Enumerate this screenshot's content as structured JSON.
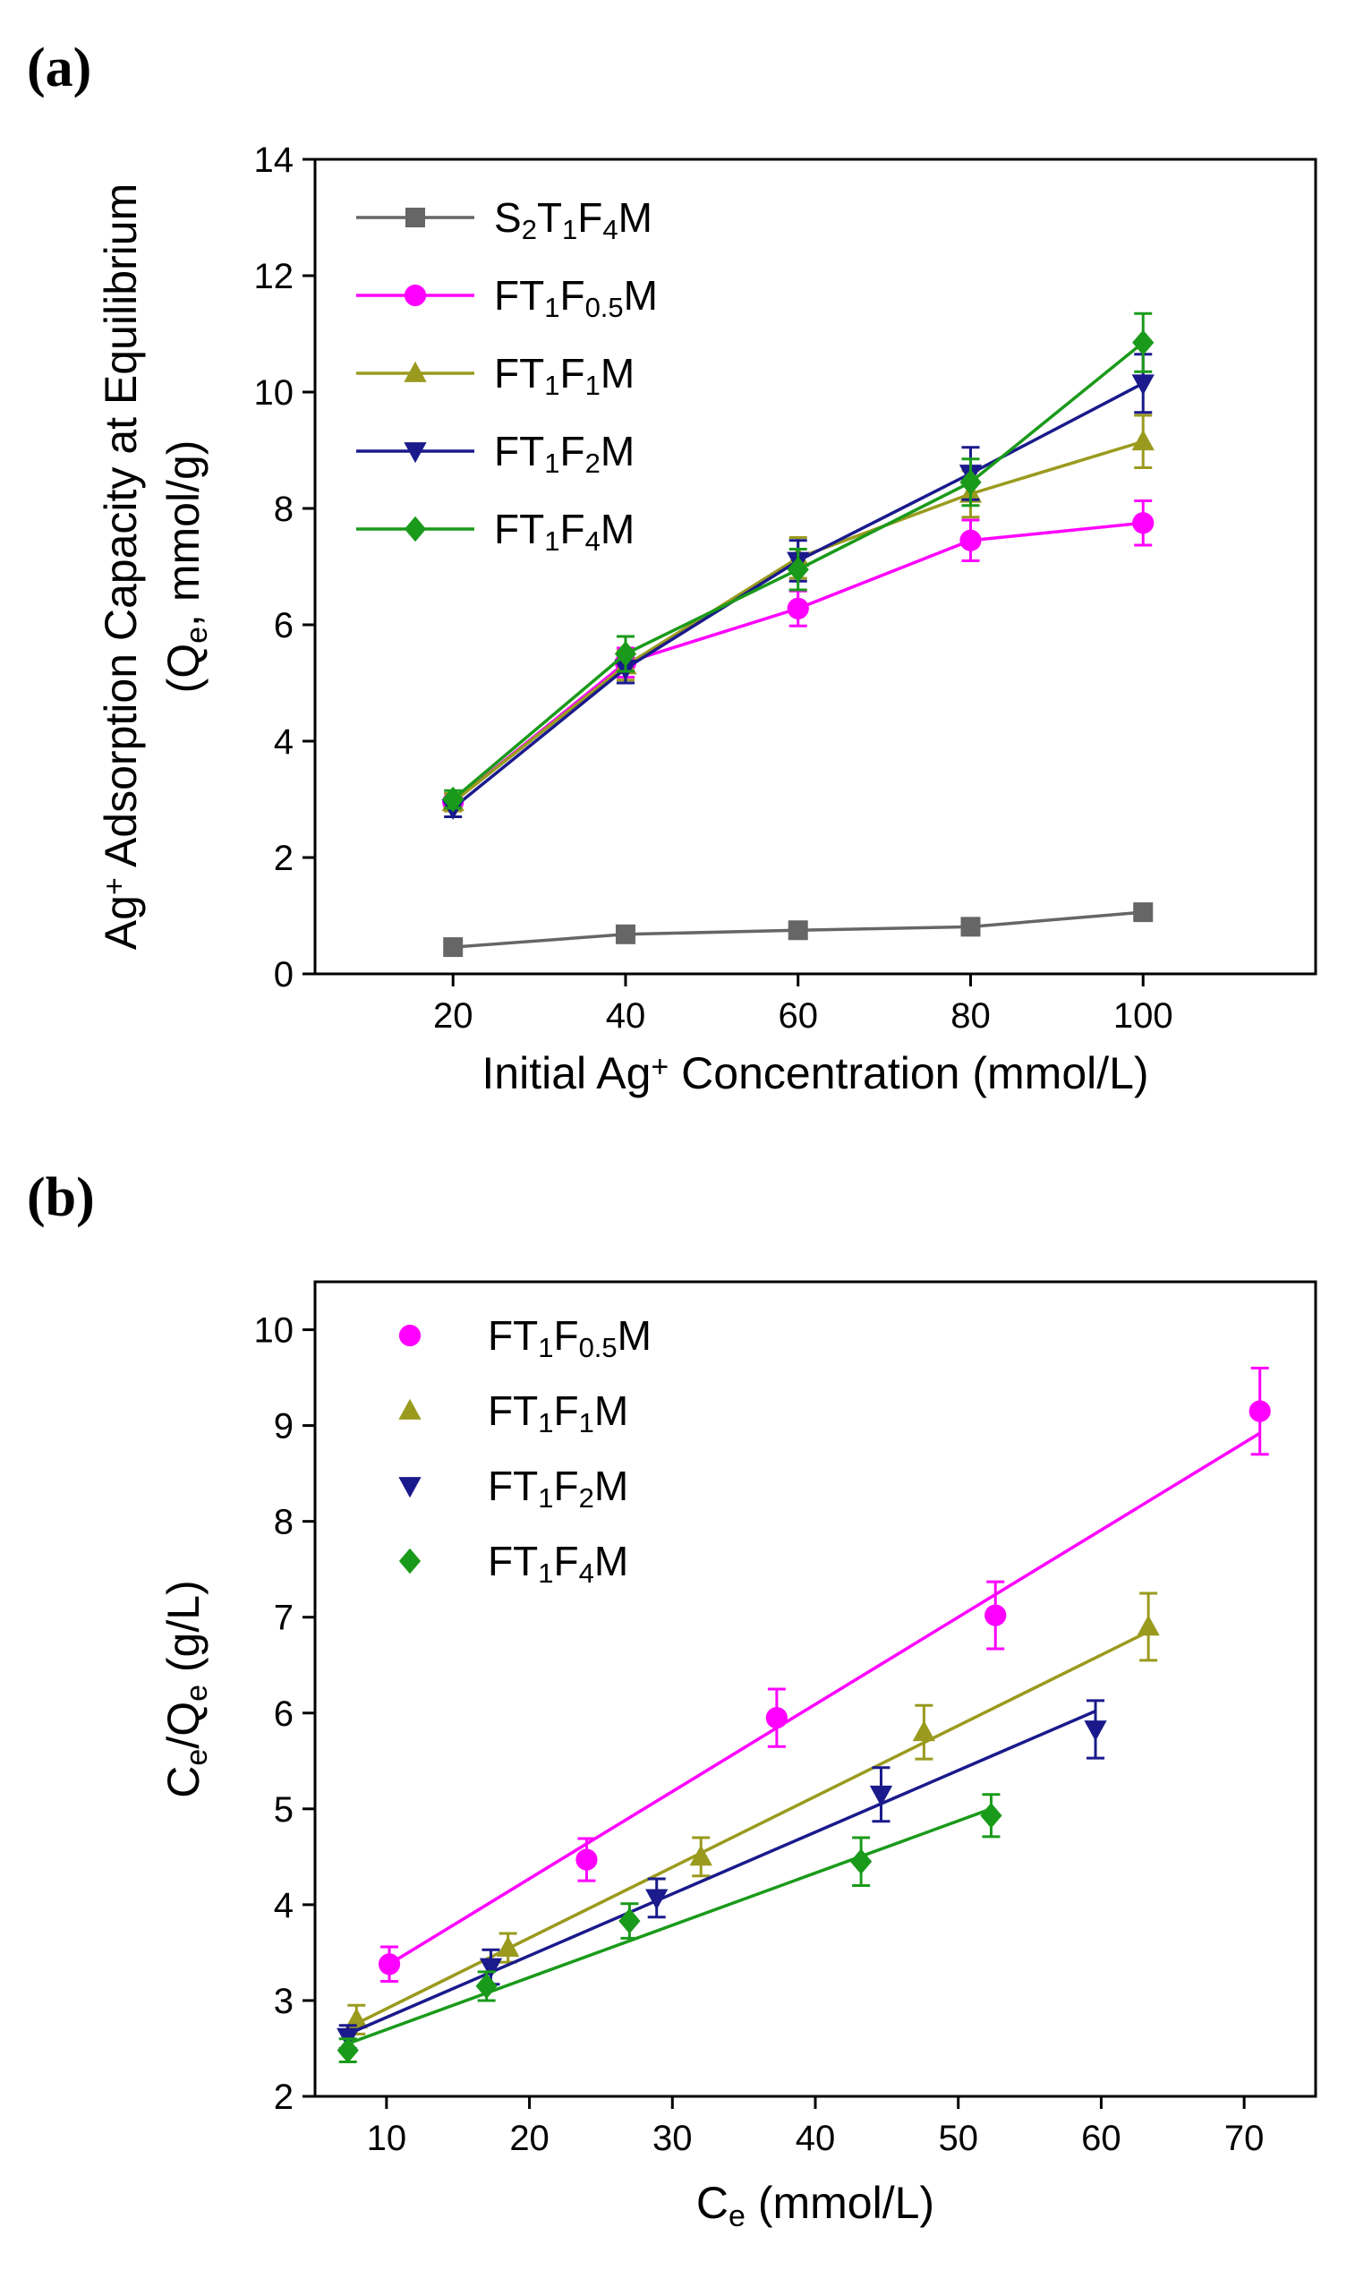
{
  "chart_data": [
    {
      "panel": "(a)",
      "type": "line",
      "xlabel": {
        "pre": "Initial Ag",
        "sup": "+",
        "post": " Concentration (mmol/L)"
      },
      "ylabel_line1": {
        "pre": "Ag",
        "sup": "+",
        "post": " Adsorption Capacity at Equilibrium"
      },
      "ylabel_line2": {
        "pre": "(Q",
        "sub": "e",
        "post": ", mmol/g)"
      },
      "xticks": [
        20,
        40,
        60,
        80,
        100
      ],
      "yticks": [
        0,
        2,
        4,
        6,
        8,
        10,
        12,
        14
      ],
      "xlim": [
        4,
        120
      ],
      "ylim": [
        0,
        14
      ],
      "legend_position": "top-left",
      "series": [
        {
          "key": "s2t1f4m",
          "name": "S2T1F4M",
          "parts": [
            [
              "S",
              ""
            ],
            [
              "2",
              "sub"
            ],
            [
              "T",
              ""
            ],
            [
              "1",
              "sub"
            ],
            [
              "F",
              ""
            ],
            [
              "4",
              "sub"
            ],
            [
              "M",
              ""
            ]
          ],
          "color": "#666666",
          "marker": "square",
          "x": [
            20,
            40,
            60,
            80,
            100
          ],
          "y": [
            0.46,
            0.68,
            0.75,
            0.81,
            1.06
          ],
          "err": [
            0.05,
            0.05,
            0.05,
            0.05,
            0.07
          ]
        },
        {
          "key": "ft1f05m",
          "name": "FT1F0.5M",
          "parts": [
            [
              "FT",
              ""
            ],
            [
              "1",
              "sub"
            ],
            [
              "F",
              ""
            ],
            [
              "0.5",
              "sub"
            ],
            [
              "M",
              ""
            ]
          ],
          "color": "#ff00ff",
          "marker": "circle",
          "x": [
            20,
            40,
            60,
            80,
            100
          ],
          "y": [
            2.95,
            5.35,
            6.28,
            7.45,
            7.75
          ],
          "err": [
            0.15,
            0.25,
            0.3,
            0.35,
            0.38
          ]
        },
        {
          "key": "ft1f1m",
          "name": "FT1F1M",
          "parts": [
            [
              "FT",
              ""
            ],
            [
              "1",
              "sub"
            ],
            [
              "F",
              ""
            ],
            [
              "1",
              "sub"
            ],
            [
              "M",
              ""
            ]
          ],
          "color": "#9a9a1e",
          "marker": "triangle-up",
          "x": [
            20,
            40,
            60,
            80,
            100
          ],
          "y": [
            2.95,
            5.3,
            7.15,
            8.25,
            9.15
          ],
          "err": [
            0.15,
            0.25,
            0.35,
            0.4,
            0.45
          ]
        },
        {
          "key": "ft1f2m",
          "name": "FT1F2M",
          "parts": [
            [
              "FT",
              ""
            ],
            [
              "1",
              "sub"
            ],
            [
              "F",
              ""
            ],
            [
              "2",
              "sub"
            ],
            [
              "M",
              ""
            ]
          ],
          "color": "#1a1a8c",
          "marker": "triangle-down",
          "x": [
            20,
            40,
            60,
            80,
            100
          ],
          "y": [
            2.85,
            5.25,
            7.1,
            8.6,
            10.15
          ],
          "err": [
            0.15,
            0.25,
            0.35,
            0.45,
            0.5
          ]
        },
        {
          "key": "ft1f4m",
          "name": "FT1F4M",
          "parts": [
            [
              "FT",
              ""
            ],
            [
              "1",
              "sub"
            ],
            [
              "F",
              ""
            ],
            [
              "4",
              "sub"
            ],
            [
              "M",
              ""
            ]
          ],
          "color": "#1a9a1a",
          "marker": "diamond",
          "x": [
            20,
            40,
            60,
            80,
            100
          ],
          "y": [
            3.0,
            5.5,
            6.95,
            8.45,
            10.85
          ],
          "err": [
            0.15,
            0.3,
            0.35,
            0.4,
            0.5
          ]
        }
      ]
    },
    {
      "panel": "(b)",
      "type": "scatter",
      "xlabel": {
        "pre": "C",
        "sub": "e",
        "post": " (mmol/L)"
      },
      "ylabel": {
        "pre": "C",
        "sub": "e",
        "mid": "/Q",
        "sub2": "e",
        "post": " (g/L)"
      },
      "xticks": [
        10,
        20,
        30,
        40,
        50,
        60,
        70
      ],
      "yticks": [
        2,
        3,
        4,
        5,
        6,
        7,
        8,
        9,
        10
      ],
      "xlim": [
        5,
        75
      ],
      "ylim": [
        2,
        10.5
      ],
      "legend_position": "top-left",
      "series": [
        {
          "key": "ft1f05m",
          "name": "FT1F0.5M",
          "parts": [
            [
              "FT",
              ""
            ],
            [
              "1",
              "sub"
            ],
            [
              "F",
              ""
            ],
            [
              "0.5",
              "sub"
            ],
            [
              "M",
              ""
            ]
          ],
          "color": "#ff00ff",
          "marker": "circle",
          "x": [
            10.2,
            24.0,
            37.3,
            52.6,
            71.1
          ],
          "y": [
            3.38,
            4.47,
            5.95,
            7.02,
            9.15
          ],
          "err": [
            0.18,
            0.22,
            0.3,
            0.35,
            0.45
          ],
          "fit": [
            [
              10.2,
              3.38
            ],
            [
              71.1,
              8.92
            ]
          ]
        },
        {
          "key": "ft1f1m",
          "name": "FT1F1M",
          "parts": [
            [
              "FT",
              ""
            ],
            [
              "1",
              "sub"
            ],
            [
              "F",
              ""
            ],
            [
              "1",
              "sub"
            ],
            [
              "M",
              ""
            ]
          ],
          "color": "#9a9a1e",
          "marker": "triangle-up",
          "x": [
            7.9,
            18.5,
            32.0,
            47.6,
            63.3
          ],
          "y": [
            2.8,
            3.55,
            4.5,
            5.8,
            6.9
          ],
          "err": [
            0.15,
            0.15,
            0.2,
            0.28,
            0.35
          ],
          "fit": [
            [
              7.9,
              2.76
            ],
            [
              63.3,
              6.85
            ]
          ]
        },
        {
          "key": "ft1f2m",
          "name": "FT1F2M",
          "parts": [
            [
              "FT",
              ""
            ],
            [
              "1",
              "sub"
            ],
            [
              "F",
              ""
            ],
            [
              "2",
              "sub"
            ],
            [
              "M",
              ""
            ]
          ],
          "color": "#1a1a8c",
          "marker": "triangle-down",
          "x": [
            7.3,
            17.3,
            28.9,
            44.6,
            59.6
          ],
          "y": [
            2.62,
            3.35,
            4.07,
            5.15,
            5.83
          ],
          "err": [
            0.12,
            0.18,
            0.2,
            0.28,
            0.3
          ],
          "fit": [
            [
              7.3,
              2.65
            ],
            [
              59.6,
              6.02
            ]
          ]
        },
        {
          "key": "ft1f4m",
          "name": "FT1F4M",
          "parts": [
            [
              "FT",
              ""
            ],
            [
              "1",
              "sub"
            ],
            [
              "F",
              ""
            ],
            [
              "4",
              "sub"
            ],
            [
              "M",
              ""
            ]
          ],
          "color": "#1a9a1a",
          "marker": "diamond",
          "x": [
            7.3,
            17.0,
            27.0,
            43.2,
            52.3
          ],
          "y": [
            2.48,
            3.15,
            3.83,
            4.45,
            4.93
          ],
          "err": [
            0.12,
            0.15,
            0.18,
            0.25,
            0.22
          ],
          "fit": [
            [
              7.3,
              2.55
            ],
            [
              52.3,
              5.0
            ]
          ]
        }
      ]
    }
  ]
}
